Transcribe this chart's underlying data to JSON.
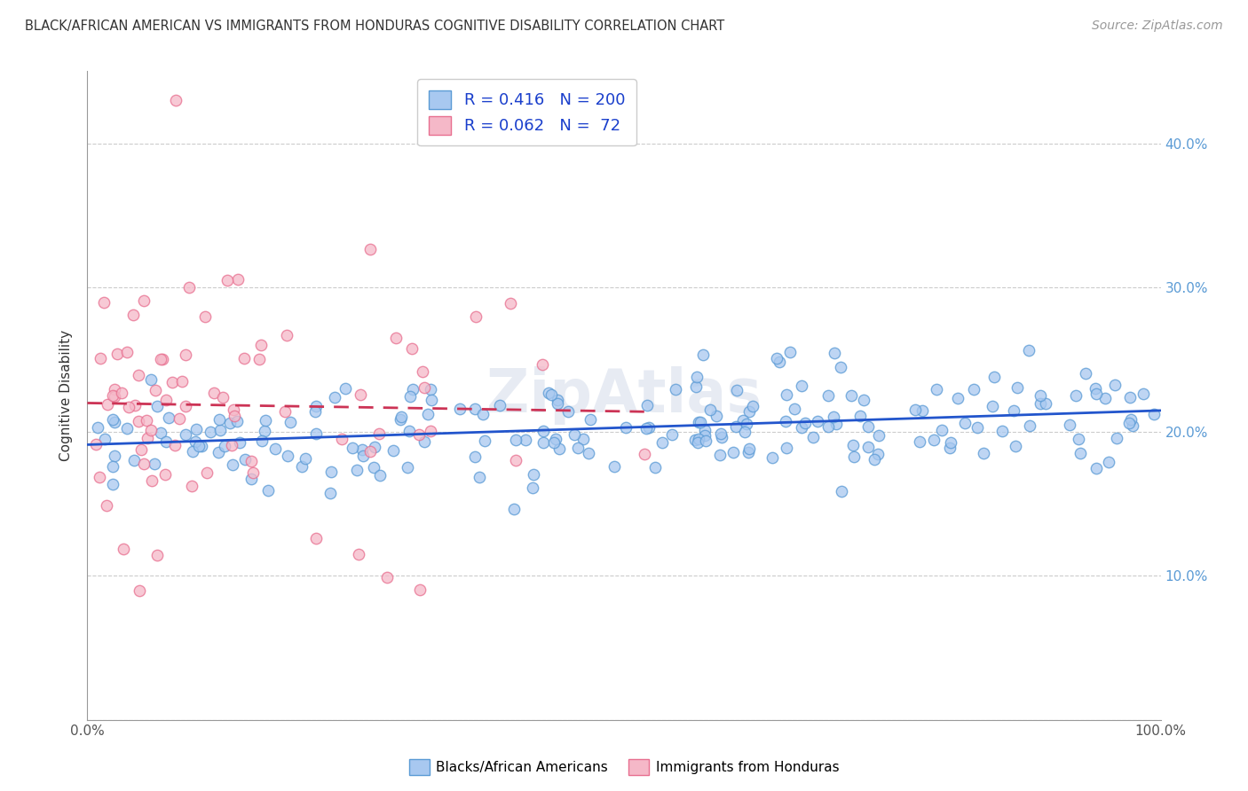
{
  "title": "BLACK/AFRICAN AMERICAN VS IMMIGRANTS FROM HONDURAS COGNITIVE DISABILITY CORRELATION CHART",
  "source": "Source: ZipAtlas.com",
  "ylabel": "Cognitive Disability",
  "xlim": [
    0,
    1.0
  ],
  "ylim": [
    0.0,
    0.45
  ],
  "ytick_positions": [
    0.0,
    0.1,
    0.2,
    0.3,
    0.4
  ],
  "ytick_labels_right": [
    "",
    "10.0%",
    "20.0%",
    "30.0%",
    "40.0%"
  ],
  "xtick_positions": [
    0.0,
    0.2,
    0.4,
    0.6,
    0.8,
    1.0
  ],
  "xtick_labels": [
    "0.0%",
    "",
    "",
    "",
    "",
    "100.0%"
  ],
  "blue_color": "#a8c8f0",
  "pink_color": "#f5b8c8",
  "blue_edge_color": "#5b9bd5",
  "pink_edge_color": "#e87090",
  "blue_line_color": "#2255cc",
  "pink_line_color": "#cc3355",
  "blue_R": 0.416,
  "blue_N": 200,
  "pink_R": 0.062,
  "pink_N": 72,
  "legend_label_blue": "Blacks/African Americans",
  "legend_label_pink": "Immigrants from Honduras",
  "watermark": "ZipAtlas",
  "title_color": "#333333",
  "source_color": "#999999",
  "right_axis_color": "#5b9bd5",
  "grid_color": "#cccccc",
  "bottom_spine_color": "#999999",
  "left_spine_color": "#999999",
  "marker_size": 80,
  "marker_lw": 1.0,
  "trend_lw": 2.0
}
